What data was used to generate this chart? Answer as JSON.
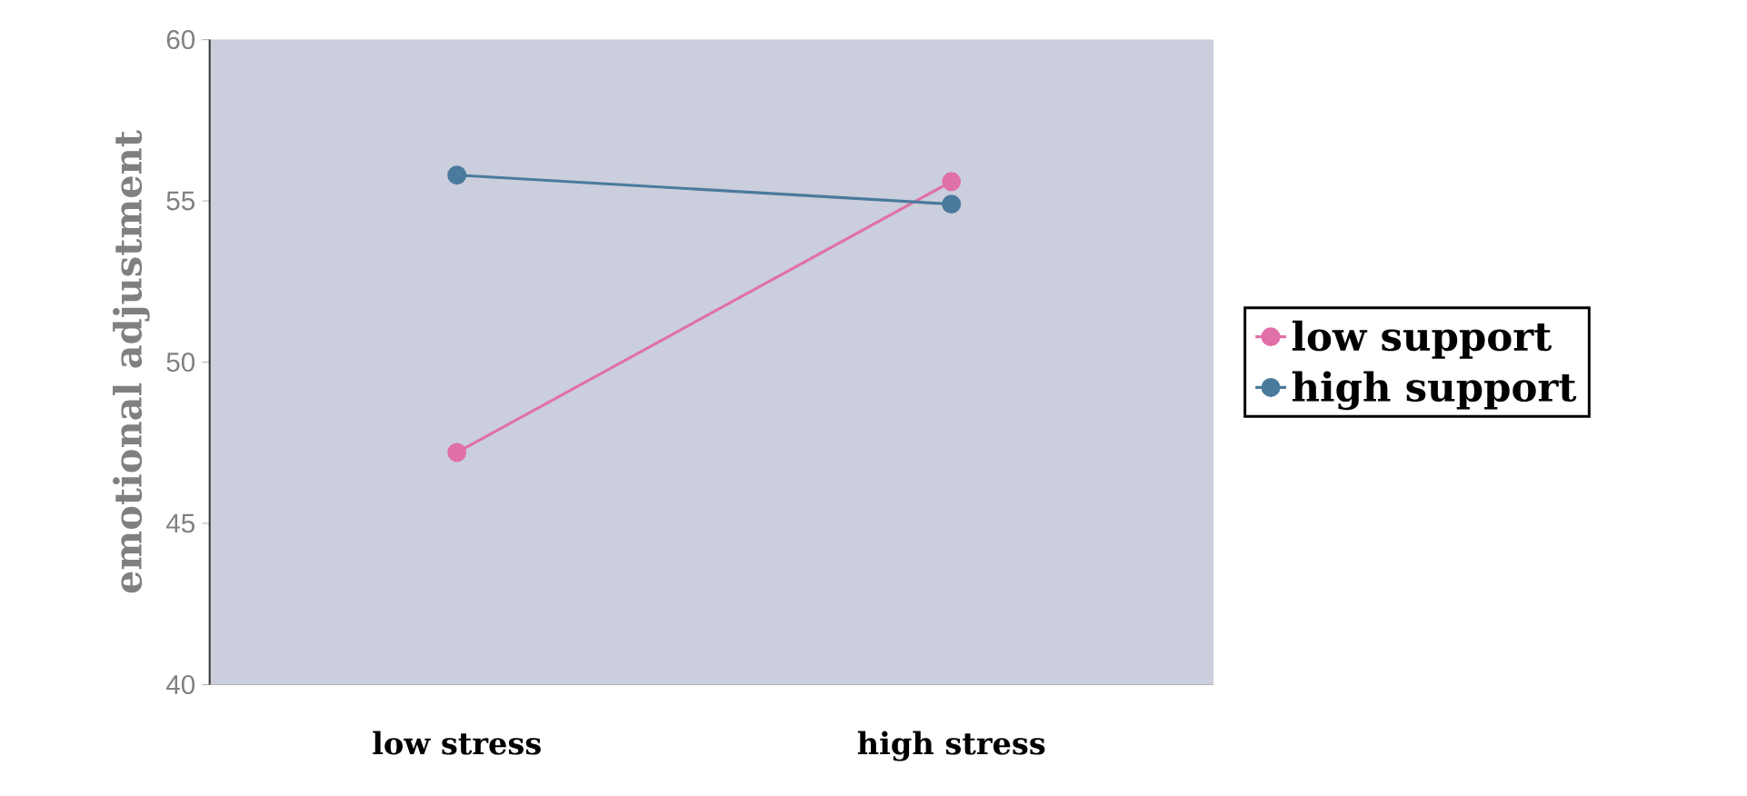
{
  "chart_data": {
    "type": "line",
    "ylabel": "emotional adjustment",
    "categories": [
      "low stress",
      "high stress"
    ],
    "series": [
      {
        "name": "low support",
        "color": "#e070a8",
        "values": [
          47.2,
          55.6
        ]
      },
      {
        "name": "high support",
        "color": "#4a7a9c",
        "values": [
          55.8,
          54.9
        ]
      }
    ],
    "ylim": [
      40,
      60
    ],
    "yticks": [
      40,
      45,
      50,
      55,
      60
    ],
    "grid": false,
    "legend": "right",
    "marker": "circle",
    "line_style": "solid"
  }
}
